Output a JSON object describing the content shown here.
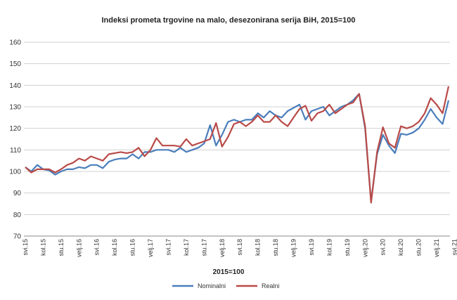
{
  "chart_data": {
    "type": "line",
    "title": "Indeksi prometa trgovine na malo, desezonirana serija BiH, 2015=100",
    "xlabel": "2015=100",
    "ylabel": "",
    "ylim": [
      70,
      160
    ],
    "yticks": [
      70,
      80,
      90,
      100,
      110,
      120,
      130,
      140,
      150,
      160
    ],
    "grid": true,
    "legend_position": "bottom-center",
    "tick_labels": [
      "svi.15",
      "kol.15",
      "stu.15",
      "velj.16",
      "svi.16",
      "kol.16",
      "stu.16",
      "velj.17",
      "svi.17",
      "kol.17",
      "stu.17",
      "velj.18",
      "svi.18",
      "kol.18",
      "stu.18",
      "velj.19",
      "svi.19",
      "kol.19",
      "stu.19",
      "velj.20",
      "svi.20",
      "kol.20",
      "stu.20",
      "velj.21",
      "svi.21"
    ],
    "series": [
      {
        "name": "Nominalni",
        "color": "#4a7ebb",
        "values": [
          102,
          100,
          103,
          101,
          100.5,
          98.5,
          100,
          101,
          101,
          102,
          101.5,
          103,
          103,
          101.5,
          104.5,
          105.5,
          106,
          106,
          108,
          106,
          109,
          109,
          110,
          110,
          110,
          109,
          111,
          109,
          110,
          111,
          113,
          121.5,
          112,
          117,
          123,
          124,
          123,
          124,
          124,
          127,
          125,
          128,
          126,
          125,
          128,
          129.5,
          131,
          124,
          128,
          129,
          130,
          126,
          128,
          130,
          131,
          133,
          136,
          120,
          86,
          108,
          117,
          112,
          108.5,
          117.5,
          117,
          118,
          120,
          124,
          129,
          125,
          122,
          133
        ]
      },
      {
        "name": "Realni",
        "color": "#b94a48",
        "values": [
          102,
          99.5,
          101,
          101,
          101,
          99.5,
          101,
          103,
          104,
          106,
          105,
          107,
          106,
          105,
          108,
          108.5,
          109,
          108.5,
          109,
          111,
          107,
          110,
          115.5,
          112,
          112,
          112,
          111.5,
          115,
          112,
          113,
          114,
          115,
          122.5,
          111.5,
          116,
          122,
          123,
          121,
          123,
          126,
          123,
          123,
          126,
          123,
          121,
          125,
          129,
          130.5,
          123.5,
          127,
          128,
          131,
          127,
          129,
          131,
          132,
          136,
          121,
          85.5,
          109,
          120.5,
          113,
          111,
          121,
          120,
          121,
          123,
          127,
          134,
          131,
          127,
          139.5
        ]
      }
    ]
  }
}
